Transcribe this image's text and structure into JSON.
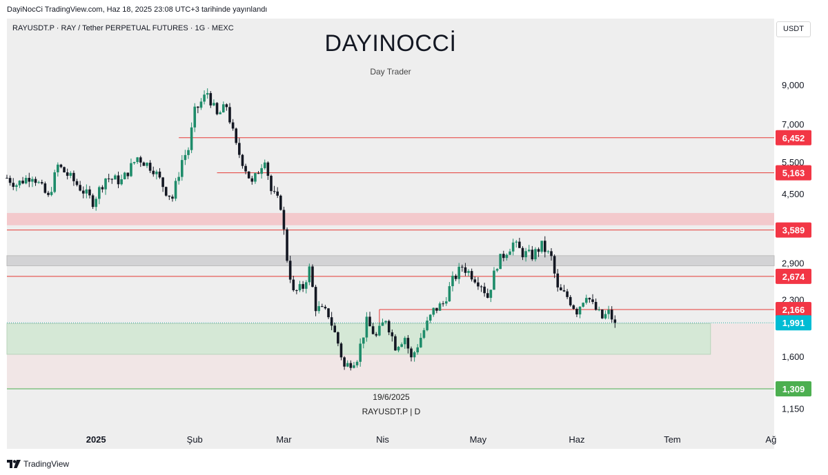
{
  "header": {
    "published": "DayiNocCi TradingView.com, Haz 18, 2025 23:08 UTC+3 tarihinde yayınlandı"
  },
  "symbol_info": "RAYUSDT.P · RAY / Tether PERPETUAL FUTURES · 1G · MEXC",
  "brand": {
    "title": "DAYINOCCİ",
    "subtitle": "Day Trader"
  },
  "watermark": {
    "date": "19/6/2025",
    "symbol": "RAYUSDT.P | D"
  },
  "currency": "USDT",
  "footer": {
    "logo_text": "TradingView"
  },
  "colors": {
    "up": "#1e8c6a",
    "down": "#131722",
    "level_line": "#e53935",
    "level_badge": "#f23645",
    "last_price_badge": "#00bcd4",
    "support_badge": "#4caf50",
    "supply_zone": "#f3c9cc",
    "gray_zone": "#d3d3d5",
    "demand_zone": "#d5e8d6",
    "low_zone": "#f1e6e6"
  },
  "chart_data": {
    "type": "candlestick",
    "symbol": "RAYUSDT.P",
    "timeframe": "1G",
    "exchange": "MEXC",
    "y_scale": "log",
    "ylim": [
      1.07,
      11.9
    ],
    "y_ticks": [
      {
        "value": 9.0,
        "label": "9,000"
      },
      {
        "value": 7.0,
        "label": "7,000"
      },
      {
        "value": 5.5,
        "label": "5,500"
      },
      {
        "value": 4.5,
        "label": "4,500"
      },
      {
        "value": 2.9,
        "label": "2,900"
      },
      {
        "value": 2.3,
        "label": "2,300"
      },
      {
        "value": 1.6,
        "label": "1,600"
      },
      {
        "value": 1.15,
        "label": "1,150"
      }
    ],
    "x_ticks": [
      {
        "day": 0,
        "label": "2025"
      },
      {
        "day": 31,
        "label": "Şub"
      },
      {
        "day": 59,
        "label": "Mar"
      },
      {
        "day": 90,
        "label": "Nis"
      },
      {
        "day": 120,
        "label": "May"
      },
      {
        "day": 151,
        "label": "Haz"
      },
      {
        "day": 181,
        "label": "Tem"
      },
      {
        "day": 212,
        "label": "Ağ"
      }
    ],
    "x_day_range": [
      -28,
      213
    ],
    "horizontal_levels": [
      {
        "price": 6.452,
        "label": "6,452",
        "color": "#f23645",
        "from_day": 26
      },
      {
        "price": 5.163,
        "label": "5,163",
        "color": "#f23645",
        "from_day": 38
      },
      {
        "price": 3.589,
        "label": "3,589",
        "color": "#f23645",
        "from_day": -28
      },
      {
        "price": 2.674,
        "label": "2,674",
        "color": "#f23645",
        "from_day": -28
      },
      {
        "price": 2.166,
        "label": "2,166",
        "color": "#f23645",
        "from_day": 89
      },
      {
        "price": 1.991,
        "label": "1,991",
        "color": "#00bcd4",
        "from_day": -28,
        "kind": "last"
      },
      {
        "price": 1.309,
        "label": "1,309",
        "color": "#4caf50",
        "from_day": -28
      }
    ],
    "zones": [
      {
        "name": "supply",
        "top": 4.0,
        "bottom": 3.7,
        "from_day": -28,
        "to_day": 213,
        "color": "#f3c9cc"
      },
      {
        "name": "gray",
        "top": 3.05,
        "bottom": 2.86,
        "from_day": -28,
        "to_day": 213,
        "color": "#d3d3d5"
      },
      {
        "name": "demand",
        "top": 1.98,
        "bottom": 1.63,
        "from_day": -28,
        "to_day": 193,
        "color": "#d5e8d6"
      },
      {
        "name": "lower",
        "top": 1.98,
        "bottom": 1.309,
        "from_day": -28,
        "to_day": 213,
        "color": "#f1e6e6"
      }
    ],
    "close_path": [
      {
        "day": -28,
        "close": 5.0
      },
      {
        "day": -25,
        "close": 4.8
      },
      {
        "day": -20,
        "close": 5.1
      },
      {
        "day": -15,
        "close": 4.4
      },
      {
        "day": -12,
        "close": 5.4
      },
      {
        "day": -8,
        "close": 5.0
      },
      {
        "day": -4,
        "close": 4.6
      },
      {
        "day": -1,
        "close": 4.3
      },
      {
        "day": 3,
        "close": 5.0
      },
      {
        "day": 8,
        "close": 4.9
      },
      {
        "day": 13,
        "close": 5.7
      },
      {
        "day": 18,
        "close": 5.3
      },
      {
        "day": 22,
        "close": 4.6
      },
      {
        "day": 24,
        "close": 4.4
      },
      {
        "day": 27,
        "close": 5.6
      },
      {
        "day": 29,
        "close": 6.0
      },
      {
        "day": 31,
        "close": 7.6
      },
      {
        "day": 35,
        "close": 8.6
      },
      {
        "day": 38,
        "close": 7.4
      },
      {
        "day": 41,
        "close": 7.9
      },
      {
        "day": 44,
        "close": 6.1
      },
      {
        "day": 47,
        "close": 5.3
      },
      {
        "day": 49,
        "close": 4.8
      },
      {
        "day": 53,
        "close": 5.7
      },
      {
        "day": 55,
        "close": 4.6
      },
      {
        "day": 58,
        "close": 4.2
      },
      {
        "day": 60,
        "close": 3.0
      },
      {
        "day": 62,
        "close": 2.4
      },
      {
        "day": 65,
        "close": 2.5
      },
      {
        "day": 67,
        "close": 2.8
      },
      {
        "day": 69,
        "close": 2.2
      },
      {
        "day": 73,
        "close": 2.1
      },
      {
        "day": 76,
        "close": 1.75
      },
      {
        "day": 78,
        "close": 1.5
      },
      {
        "day": 82,
        "close": 1.6
      },
      {
        "day": 85,
        "close": 2.0
      },
      {
        "day": 88,
        "close": 1.82
      },
      {
        "day": 91,
        "close": 2.05
      },
      {
        "day": 94,
        "close": 1.72
      },
      {
        "day": 97,
        "close": 1.82
      },
      {
        "day": 99,
        "close": 1.58
      },
      {
        "day": 103,
        "close": 1.9
      },
      {
        "day": 106,
        "close": 2.15
      },
      {
        "day": 109,
        "close": 2.25
      },
      {
        "day": 112,
        "close": 2.6
      },
      {
        "day": 115,
        "close": 2.85
      },
      {
        "day": 118,
        "close": 2.7
      },
      {
        "day": 121,
        "close": 2.55
      },
      {
        "day": 123,
        "close": 2.35
      },
      {
        "day": 126,
        "close": 2.9
      },
      {
        "day": 129,
        "close": 3.15
      },
      {
        "day": 131,
        "close": 3.3
      },
      {
        "day": 134,
        "close": 3.1
      },
      {
        "day": 137,
        "close": 3.05
      },
      {
        "day": 140,
        "close": 3.25
      },
      {
        "day": 143,
        "close": 3.0
      },
      {
        "day": 145,
        "close": 2.45
      },
      {
        "day": 148,
        "close": 2.35
      },
      {
        "day": 151,
        "close": 2.15
      },
      {
        "day": 154,
        "close": 2.4
      },
      {
        "day": 156,
        "close": 2.22
      },
      {
        "day": 159,
        "close": 2.05
      },
      {
        "day": 161,
        "close": 2.12
      },
      {
        "day": 163,
        "close": 1.991
      }
    ]
  }
}
